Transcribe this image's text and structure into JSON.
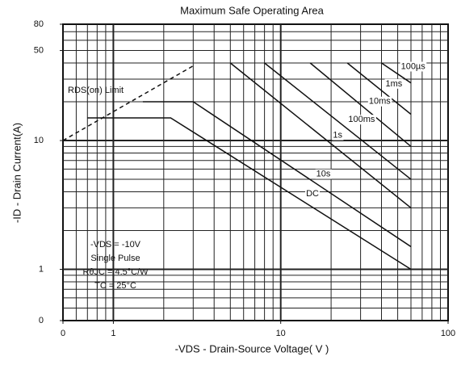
{
  "chart_data": {
    "type": "line",
    "title": "Maximum Safe Operating Area",
    "x_label": "-VDS - Drain-Source Voltage( V )",
    "y_label": "-ID - Drain Current(A)",
    "log_x": true,
    "log_y": true,
    "xlim": [
      0.5,
      100
    ],
    "ylim": [
      0.4,
      80
    ],
    "xticks": [
      {
        "value": 0.5,
        "label": "0"
      },
      1,
      10,
      100
    ],
    "yticks": [
      {
        "value": 0.4,
        "label": "0"
      },
      1,
      10,
      50,
      80
    ],
    "x_grid": [
      0.6,
      0.7,
      0.8,
      0.9,
      1,
      2,
      3,
      4,
      5,
      6,
      7,
      8,
      9,
      10,
      20,
      30,
      40,
      50,
      60,
      70,
      80,
      90
    ],
    "y_grid": [
      0.5,
      0.6,
      0.7,
      0.8,
      0.9,
      1,
      2,
      3,
      4,
      5,
      6,
      7,
      8,
      9,
      10,
      20,
      30,
      40,
      50,
      60,
      70
    ],
    "annotations": [
      "RDS(on) Limit",
      "-VDS = -10V",
      "Single Pulse",
      "RθJC = 4.5°C/W",
      "TC = 25°C"
    ],
    "series": [
      {
        "name": "100µs",
        "color": "#111111",
        "x": [
          40,
          60
        ],
        "values": [
          40,
          28
        ]
      },
      {
        "name": "1ms",
        "color": "#111111",
        "x": [
          25,
          60
        ],
        "values": [
          40,
          16
        ]
      },
      {
        "name": "10ms",
        "color": "#111111",
        "x": [
          15,
          60
        ],
        "values": [
          40,
          9
        ]
      },
      {
        "name": "100ms",
        "color": "#111111",
        "x": [
          8,
          60
        ],
        "values": [
          40,
          5
        ]
      },
      {
        "name": "1s",
        "color": "#111111",
        "x": [
          5,
          60
        ],
        "values": [
          40,
          3
        ]
      },
      {
        "name": "10s",
        "color": "#111111",
        "x": [
          1.5,
          3,
          60
        ],
        "values": [
          20,
          20,
          1.5
        ]
      },
      {
        "name": "DC",
        "color": "#111111",
        "x": [
          0.7,
          2.2,
          60
        ],
        "values": [
          15,
          15,
          1.0
        ]
      },
      {
        "color": "#111111",
        "dashed": true,
        "x": [
          0.5,
          3
        ],
        "values": [
          10,
          38
        ]
      }
    ]
  }
}
